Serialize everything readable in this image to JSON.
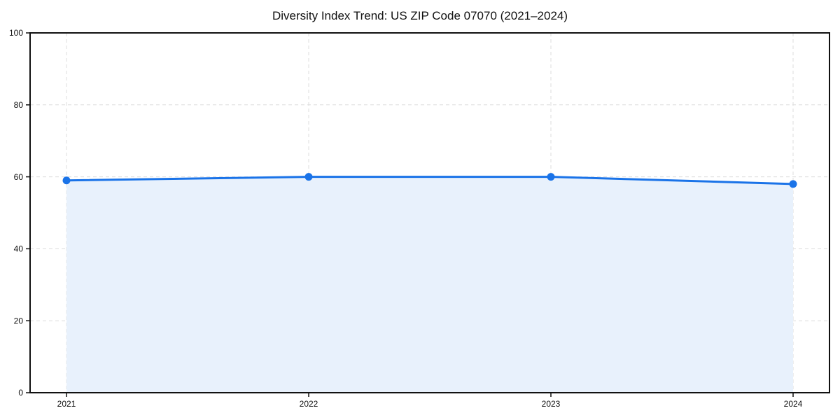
{
  "page": {
    "background": "#ffffff"
  },
  "chart_data": {
    "type": "area",
    "title": "Diversity Index Trend: US ZIP Code 07070 (2021–2024)",
    "x": [
      2021,
      2022,
      2023,
      2024
    ],
    "values": [
      59,
      60,
      60,
      58
    ],
    "xlabel": "",
    "ylabel": "",
    "ylim": [
      0,
      100
    ],
    "yticks": [
      0,
      20,
      40,
      60,
      80,
      100
    ],
    "xticks": [
      2021,
      2022,
      2023,
      2024
    ],
    "grid": true,
    "grid_style": "dashed",
    "legend": "none",
    "colors": {
      "line": "#1a73e8",
      "marker": "#1a73e8",
      "fill": "#e8f1fc",
      "grid": "#dcdcdc",
      "axis": "#111111",
      "text": "#111111"
    }
  }
}
